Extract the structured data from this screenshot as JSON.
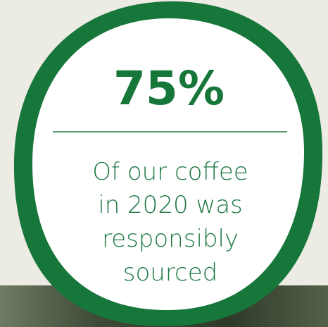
{
  "stat": "75%",
  "description": [
    "Of our coffee",
    "in 2020 was",
    "responsibly",
    "sourced"
  ]
}
